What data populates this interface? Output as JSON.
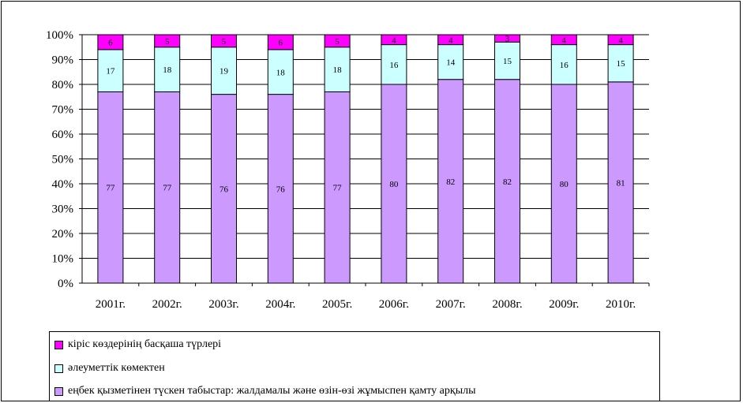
{
  "chart_data": {
    "type": "bar",
    "stacked": true,
    "percent_axis": true,
    "categories": [
      "2001г.",
      "2002г.",
      "2003г.",
      "2004г.",
      "2005г.",
      "2006г.",
      "2007г.",
      "2008г.",
      "2009г.",
      "2010г."
    ],
    "series": [
      {
        "name": "еңбек қызметінен түскен табыстар: жалдамалы және өзін-өзі жұмыспен қамту арқылы",
        "color": "#cc99ff",
        "values": [
          77,
          77,
          76,
          76,
          77,
          80,
          82,
          82,
          80,
          81
        ]
      },
      {
        "name": "әлеуметтік көмектен",
        "color": "#ccffff",
        "values": [
          17,
          18,
          19,
          18,
          18,
          16,
          14,
          15,
          16,
          15
        ]
      },
      {
        "name": "кіріс көздерінің басқаша түрлері",
        "color": "#ff00ff",
        "values": [
          6,
          5,
          5,
          6,
          5,
          4,
          4,
          3,
          4,
          4
        ]
      }
    ],
    "y_ticks": [
      "0%",
      "10%",
      "20%",
      "30%",
      "40%",
      "50%",
      "60%",
      "70%",
      "80%",
      "90%",
      "100%"
    ],
    "ylim": [
      0,
      100
    ],
    "grid": true,
    "legend": {
      "position": "bottom",
      "items": [
        "кіріс көздерінің басқаша түрлері",
        "әлеуметтік көмектен",
        "еңбек қызметінен түскен табыстар: жалдамалы және өзін-өзі жұмыспен қамту арқылы"
      ],
      "colors": [
        "#ff00ff",
        "#ccffff",
        "#cc99ff"
      ]
    }
  }
}
